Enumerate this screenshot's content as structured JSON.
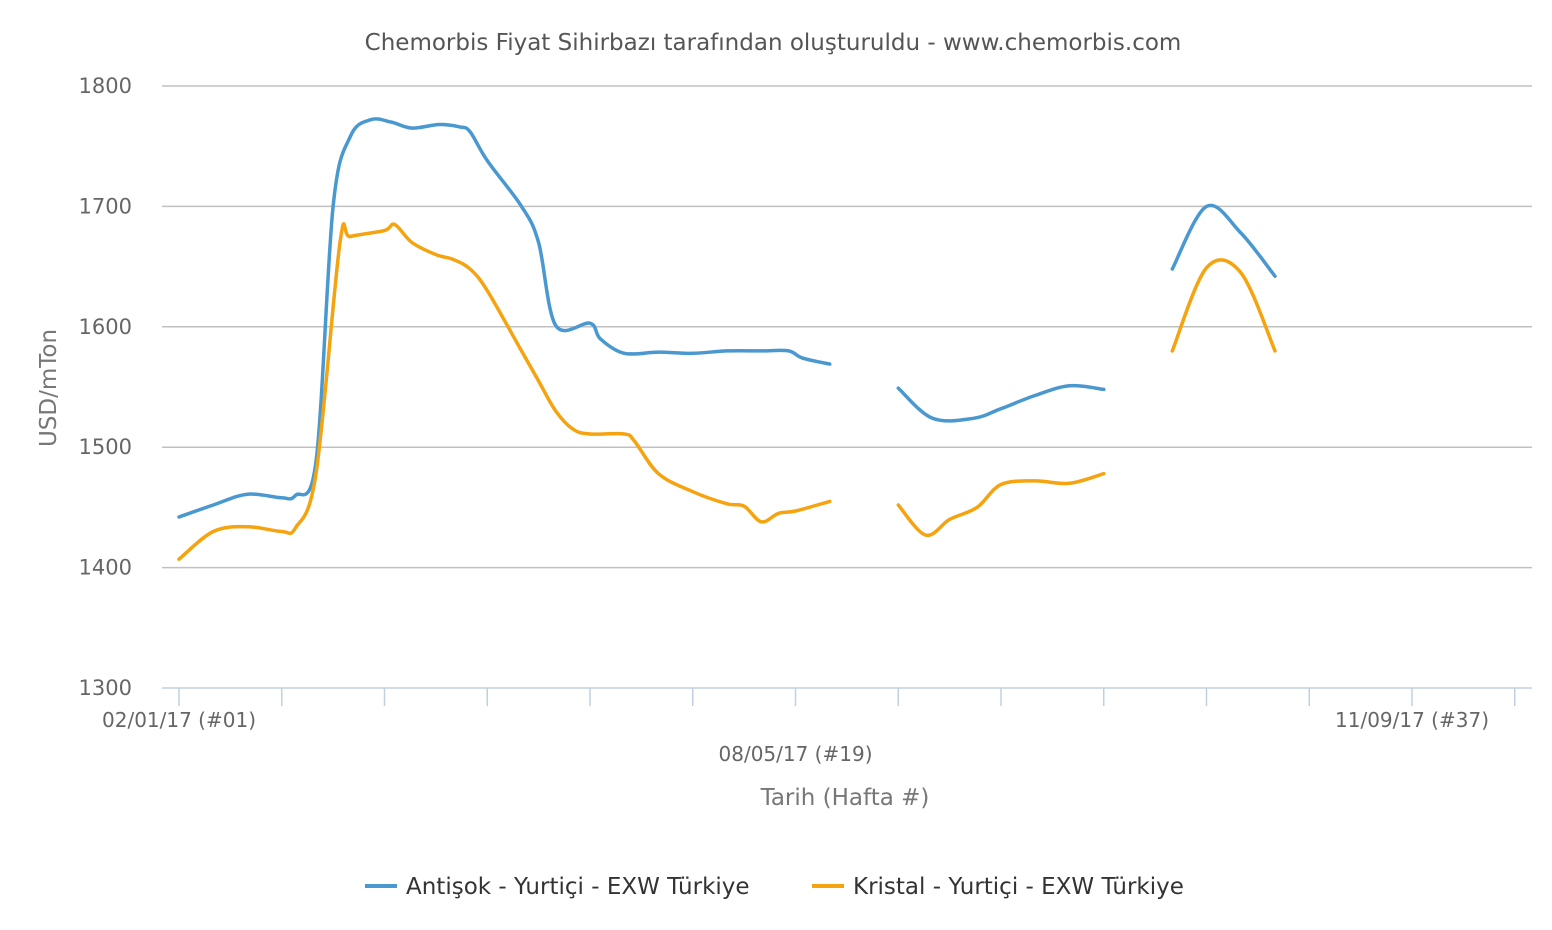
{
  "chart_data": {
    "type": "line",
    "title": "Chemorbis Fiyat Sihirbazı tarafından oluşturuldu - www.chemorbis.com",
    "xlabel": "Tarih (Hafta #)",
    "ylabel": "USD/mTon",
    "ylim": [
      1300,
      1800
    ],
    "yticks": [
      1300,
      1400,
      1500,
      1600,
      1700,
      1800
    ],
    "grid": true,
    "legend_position": "bottom",
    "x_weeks": [
      1,
      37
    ],
    "x_tick_labels": [
      {
        "week": 1,
        "label": "02/01/17 (#01)"
      },
      {
        "week": 19,
        "label": "08/05/17 (#19)"
      },
      {
        "week": 37,
        "label": "11/09/17 (#37)"
      }
    ],
    "series": [
      {
        "name": "Antişok - Yurtiçi - EXW Türkiye",
        "color": "#4a98d0",
        "segments": [
          [
            [
              1,
              1442
            ],
            [
              2,
              1452
            ],
            [
              3,
              1461
            ],
            [
              4,
              1458
            ],
            [
              4.4,
              1460
            ],
            [
              5,
              1488
            ],
            [
              5.5,
              1700
            ],
            [
              6,
              1758
            ],
            [
              6.6,
              1772
            ],
            [
              7.2,
              1770
            ],
            [
              7.8,
              1765
            ],
            [
              8.6,
              1768
            ],
            [
              9.2,
              1766
            ],
            [
              9.5,
              1762
            ],
            [
              10,
              1738
            ],
            [
              11,
              1700
            ],
            [
              11.5,
              1670
            ],
            [
              12,
              1601
            ],
            [
              13,
              1603
            ],
            [
              13.3,
              1590
            ],
            [
              14,
              1578
            ],
            [
              15,
              1579
            ],
            [
              16,
              1578
            ],
            [
              17,
              1580
            ],
            [
              18,
              1580
            ],
            [
              18.8,
              1580
            ],
            [
              19.2,
              1574
            ],
            [
              20,
              1569
            ]
          ],
          [
            [
              22,
              1549
            ],
            [
              23,
              1524
            ],
            [
              24.2,
              1524
            ],
            [
              25,
              1532
            ],
            [
              26,
              1543
            ],
            [
              27,
              1551
            ],
            [
              28,
              1548
            ]
          ]
        ]
      },
      {
        "name": "Kristal - Yurtiçi - EXW Türkiye",
        "color": "#f5a30f",
        "segments": [
          [
            [
              1,
              1407
            ],
            [
              2,
              1430
            ],
            [
              3,
              1434
            ],
            [
              4,
              1430
            ],
            [
              4.4,
              1433
            ],
            [
              5,
              1478
            ],
            [
              5.7,
              1670
            ],
            [
              6,
              1675
            ],
            [
              7,
              1680
            ],
            [
              7.3,
              1685
            ],
            [
              7.8,
              1670
            ],
            [
              8.5,
              1660
            ],
            [
              9,
              1656
            ],
            [
              9.5,
              1648
            ],
            [
              10,
              1630
            ],
            [
              11,
              1580
            ],
            [
              11.5,
              1555
            ],
            [
              12,
              1530
            ],
            [
              12.5,
              1515
            ],
            [
              13,
              1511
            ],
            [
              14,
              1511
            ],
            [
              14.3,
              1505
            ],
            [
              15,
              1478
            ],
            [
              16,
              1463
            ],
            [
              17,
              1453
            ],
            [
              17.5,
              1451
            ],
            [
              18,
              1438
            ],
            [
              18.5,
              1445
            ],
            [
              19,
              1447
            ],
            [
              20,
              1455
            ]
          ],
          [
            [
              22,
              1452
            ],
            [
              22.8,
              1427
            ],
            [
              23.5,
              1440
            ],
            [
              24.3,
              1450
            ],
            [
              25,
              1469
            ],
            [
              26,
              1472
            ],
            [
              27,
              1470
            ],
            [
              28,
              1478
            ]
          ]
        ]
      }
    ],
    "trailing_segments": [
      {
        "series": 0,
        "points": [
          [
            30,
            1648
          ],
          [
            31,
            1700
          ],
          [
            32,
            1678
          ],
          [
            33,
            1642
          ]
        ]
      },
      {
        "series": 1,
        "points": [
          [
            30,
            1580
          ],
          [
            31,
            1649
          ],
          [
            32,
            1645
          ],
          [
            33,
            1580
          ]
        ]
      }
    ]
  }
}
